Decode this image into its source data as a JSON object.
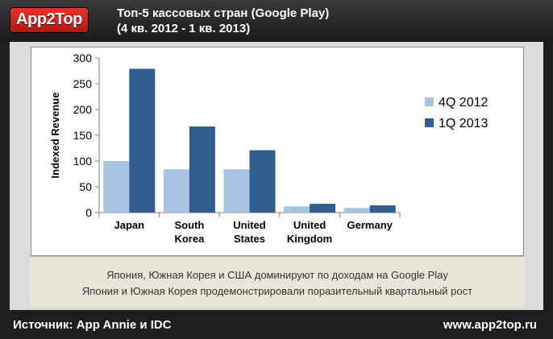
{
  "header": {
    "logo_text": "App2Top",
    "title_line1": "Топ-5 кассовых стран (Google Play)",
    "title_line2": "(4 кв. 2012 - 1 кв. 2013)"
  },
  "colors": {
    "series_4q2012": "#a8c4e2",
    "series_1q2013": "#2f5d8e",
    "caption_bg": "#e9e6d9",
    "frame": "#1e1e1e",
    "logo_red": "#d2261c"
  },
  "chart_data": {
    "type": "bar",
    "categories": [
      [
        "Japan"
      ],
      [
        "South",
        "Korea"
      ],
      [
        "United",
        "States"
      ],
      [
        "United",
        "Kingdom"
      ],
      [
        "Germany"
      ]
    ],
    "series": [
      {
        "name": "4Q 2012",
        "values": [
          100,
          84,
          84,
          12,
          9
        ]
      },
      {
        "name": "1Q 2013",
        "values": [
          279,
          167,
          121,
          17,
          14
        ]
      }
    ],
    "ylabel": "Indexed Revenue",
    "xlabel": "",
    "ylim": [
      0,
      300
    ],
    "yticks": [
      0,
      50,
      100,
      150,
      200,
      250,
      300
    ],
    "grid": false,
    "legend_position": "right"
  },
  "caption": {
    "line1": "Япония, Южная Корея и США доминируют по доходам на Google Play",
    "line2": "Япония и Южная Корея продемонстрировали поразительный квартальный рост"
  },
  "footer": {
    "source": "Источник: App Annie и IDC",
    "site": "www.app2top.ru"
  }
}
